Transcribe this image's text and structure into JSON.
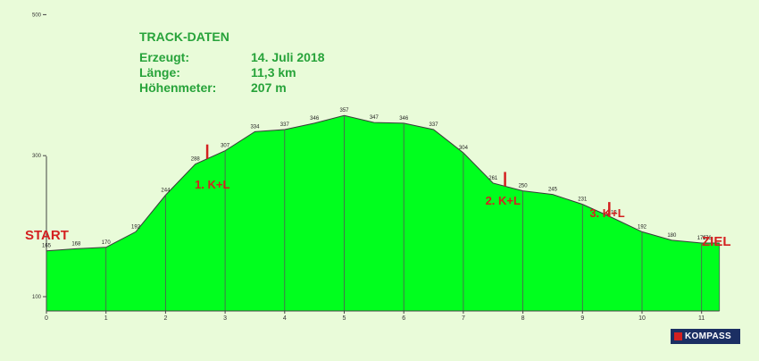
{
  "info": {
    "title": "TRACK-DATEN",
    "rows": [
      {
        "label": "Erzeugt:",
        "value": "14. Juli 2018"
      },
      {
        "label": "Länge:",
        "value": "11,3 km"
      },
      {
        "label": "Höhenmeter:",
        "value": "207 m"
      }
    ]
  },
  "labels": {
    "start": "START",
    "end": "ZIEL"
  },
  "logo": {
    "text": "KOMPASS"
  },
  "colors": {
    "fill": "#00ff1e",
    "info_text": "#27a33a",
    "marker": "#d42020",
    "background": "#e9fbd9"
  },
  "chart_data": {
    "type": "area",
    "x": [
      0,
      0.5,
      1,
      1.5,
      2,
      2.5,
      3,
      3.5,
      4,
      4.5,
      5,
      5.5,
      6,
      6.5,
      7,
      7.5,
      8,
      8.5,
      9,
      9.5,
      10,
      10.5,
      11
    ],
    "y": [
      165,
      168,
      170,
      192,
      244,
      288,
      307,
      334,
      337,
      346,
      357,
      347,
      346,
      337,
      304,
      261,
      250,
      245,
      231,
      212,
      192,
      180,
      176
    ],
    "point_labels": [
      "165",
      "168",
      "170",
      "192",
      "244",
      "288",
      "307",
      "334",
      "337",
      "346",
      "357",
      "347",
      "346",
      "337",
      "304",
      "261",
      "250",
      "245",
      "231",
      "212",
      "192",
      "180",
      "176"
    ],
    "x_end": 11.3,
    "end_value": 176,
    "xlim": [
      0,
      11.3
    ],
    "ylim": [
      50,
      500
    ],
    "x_ticks": [
      0,
      1,
      2,
      3,
      4,
      5,
      6,
      7,
      8,
      9,
      10,
      11
    ],
    "y_ticks": [
      100,
      300,
      500
    ],
    "grid": true,
    "stops": [
      {
        "label": "1. K+L",
        "x": 2.7
      },
      {
        "label": "2. K+L",
        "x": 7.7
      },
      {
        "label": "3. K+L",
        "x": 9.45
      }
    ]
  }
}
